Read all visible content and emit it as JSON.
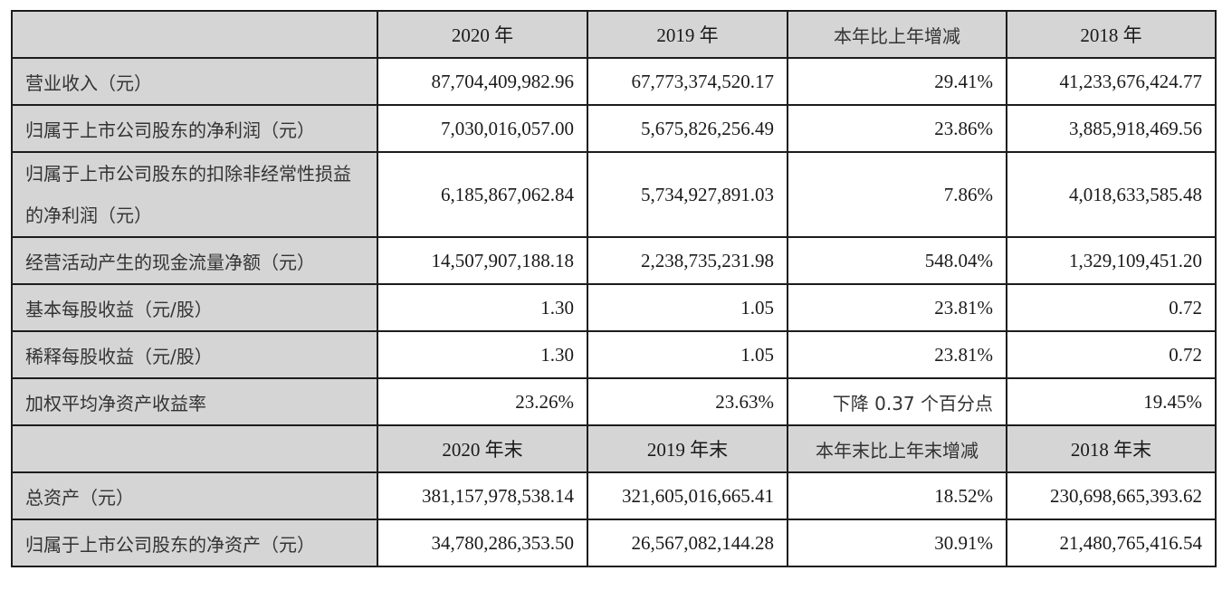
{
  "table": {
    "header_period": {
      "label": "",
      "cols": [
        "2020 年",
        "2019 年",
        "本年比上年增减",
        "2018 年"
      ]
    },
    "period_rows": [
      {
        "label": "营业收入（元）",
        "values": [
          "87,704,409,982.96",
          "67,773,374,520.17",
          "29.41%",
          "41,233,676,424.77"
        ]
      },
      {
        "label": "归属于上市公司股东的净利润（元）",
        "values": [
          "7,030,016,057.00",
          "5,675,826,256.49",
          "23.86%",
          "3,885,918,469.56"
        ]
      },
      {
        "label": "归属于上市公司股东的扣除非经常性损益的净利润（元）",
        "values": [
          "6,185,867,062.84",
          "5,734,927,891.03",
          "7.86%",
          "4,018,633,585.48"
        ]
      },
      {
        "label": "经营活动产生的现金流量净额（元）",
        "values": [
          "14,507,907,188.18",
          "2,238,735,231.98",
          "548.04%",
          "1,329,109,451.20"
        ]
      },
      {
        "label": "基本每股收益（元/股）",
        "values": [
          "1.30",
          "1.05",
          "23.81%",
          "0.72"
        ]
      },
      {
        "label": "稀释每股收益（元/股）",
        "values": [
          "1.30",
          "1.05",
          "23.81%",
          "0.72"
        ]
      },
      {
        "label": "加权平均净资产收益率",
        "values": [
          "23.26%",
          "23.63%",
          "下降 0.37 个百分点",
          "19.45%"
        ]
      }
    ],
    "header_yearend": {
      "label": "",
      "cols": [
        "2020 年末",
        "2019 年末",
        "本年末比上年末增减",
        "2018 年末"
      ]
    },
    "yearend_rows": [
      {
        "label": "总资产（元）",
        "values": [
          "381,157,978,538.14",
          "321,605,016,665.41",
          "18.52%",
          "230,698,665,393.62"
        ]
      },
      {
        "label": "归属于上市公司股东的净资产（元）",
        "values": [
          "34,780,286,353.50",
          "26,567,082,144.28",
          "30.91%",
          "21,480,765,416.54"
        ]
      }
    ]
  },
  "colors": {
    "label_bg": "#d6d5d6",
    "cell_bg": "#ffffff",
    "border": "#1c1c1c",
    "text": "#1a1a1a"
  }
}
